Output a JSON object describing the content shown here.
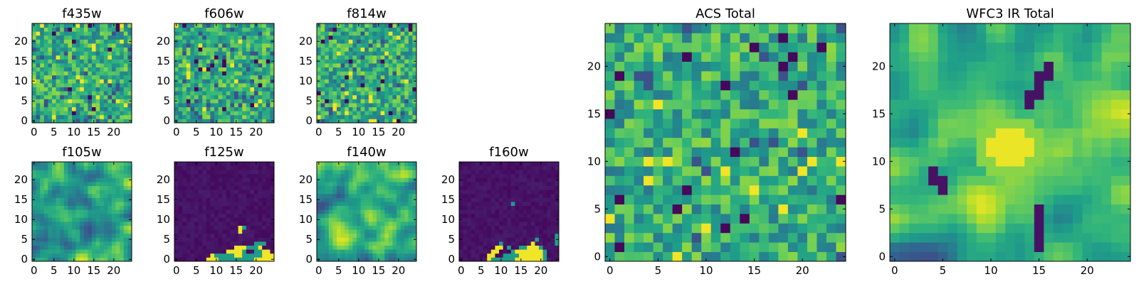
{
  "chart_data": [
    {
      "id": "f435w",
      "type": "heatmap",
      "title": "f435w",
      "pattern": "noise",
      "seed": 11,
      "n": 25,
      "xticks": [
        0,
        5,
        10,
        15,
        20
      ],
      "yticks": [
        0,
        5,
        10,
        15,
        20
      ],
      "xlim": [
        0,
        25
      ],
      "ylim": [
        0,
        25
      ],
      "colormap": "viridis"
    },
    {
      "id": "f606w",
      "type": "heatmap",
      "title": "f606w",
      "pattern": "noise",
      "seed": 23,
      "n": 25,
      "xticks": [
        0,
        5,
        10,
        15,
        20
      ],
      "yticks": [
        0,
        5,
        10,
        15,
        20
      ],
      "xlim": [
        0,
        25
      ],
      "ylim": [
        0,
        25
      ],
      "colormap": "viridis"
    },
    {
      "id": "f814w",
      "type": "heatmap",
      "title": "f814w",
      "pattern": "noise",
      "seed": 37,
      "n": 25,
      "xticks": [
        0,
        5,
        10,
        15,
        20
      ],
      "yticks": [
        0,
        5,
        10,
        15,
        20
      ],
      "xlim": [
        0,
        25
      ],
      "ylim": [
        0,
        25
      ],
      "colormap": "viridis"
    },
    {
      "id": "f105w",
      "type": "heatmap",
      "title": "f105w",
      "pattern": "smooth",
      "seed": 41,
      "n": 25,
      "xticks": [
        0,
        5,
        10,
        15,
        20
      ],
      "yticks": [
        0,
        5,
        10,
        15,
        20
      ],
      "xlim": [
        0,
        25
      ],
      "ylim": [
        0,
        25
      ],
      "colormap": "viridis"
    },
    {
      "id": "f125w",
      "type": "heatmap",
      "title": "f125w",
      "pattern": "dark",
      "seed": 53,
      "n": 25,
      "xticks": [
        0,
        5,
        10,
        15,
        20
      ],
      "yticks": [
        0,
        5,
        10,
        15,
        20
      ],
      "xlim": [
        0,
        25
      ],
      "ylim": [
        0,
        25
      ],
      "colormap": "viridis",
      "bright_cells": [
        [
          8,
          16
        ],
        [
          7,
          16
        ],
        [
          3,
          21
        ],
        [
          2,
          13
        ],
        [
          2,
          14
        ],
        [
          2,
          15
        ],
        [
          1,
          15
        ],
        [
          1,
          16
        ],
        [
          2,
          16
        ],
        [
          3,
          16
        ],
        [
          0,
          8
        ],
        [
          0,
          9
        ],
        [
          0,
          10
        ],
        [
          1,
          9
        ],
        [
          3,
          15
        ],
        [
          3,
          17
        ],
        [
          2,
          22
        ],
        [
          2,
          23
        ],
        [
          1,
          22
        ],
        [
          1,
          23
        ],
        [
          0,
          20
        ],
        [
          0,
          21
        ],
        [
          0,
          22
        ],
        [
          0,
          23
        ],
        [
          0,
          24
        ],
        [
          1,
          24
        ]
      ],
      "mid_cells": [
        [
          8,
          17
        ],
        [
          3,
          18
        ],
        [
          2,
          17
        ],
        [
          1,
          17
        ],
        [
          1,
          18
        ],
        [
          1,
          19
        ],
        [
          0,
          11
        ],
        [
          0,
          12
        ],
        [
          0,
          13
        ],
        [
          0,
          14
        ],
        [
          0,
          15
        ],
        [
          0,
          16
        ],
        [
          0,
          17
        ],
        [
          0,
          18
        ],
        [
          0,
          19
        ],
        [
          1,
          20
        ],
        [
          1,
          21
        ],
        [
          2,
          20
        ],
        [
          2,
          21
        ],
        [
          3,
          19
        ],
        [
          3,
          20
        ],
        [
          4,
          20
        ],
        [
          4,
          21
        ],
        [
          1,
          10
        ],
        [
          1,
          11
        ],
        [
          1,
          12
        ],
        [
          1,
          13
        ],
        [
          1,
          14
        ],
        [
          4,
          22
        ]
      ]
    },
    {
      "id": "f140w",
      "type": "heatmap",
      "title": "f140w",
      "pattern": "smooth",
      "seed": 67,
      "n": 25,
      "xticks": [
        0,
        5,
        10,
        15,
        20
      ],
      "yticks": [
        0,
        5,
        10,
        15,
        20
      ],
      "xlim": [
        0,
        25
      ],
      "ylim": [
        0,
        25
      ],
      "colormap": "viridis"
    },
    {
      "id": "f160w",
      "type": "heatmap",
      "title": "f160w",
      "pattern": "dark",
      "seed": 71,
      "n": 25,
      "xticks": [
        0,
        5,
        10,
        15,
        20
      ],
      "yticks": [
        0,
        5,
        10,
        15,
        20
      ],
      "xlim": [
        0,
        25
      ],
      "ylim": [
        0,
        25
      ],
      "colormap": "viridis",
      "bright_cells": [
        [
          0,
          7
        ],
        [
          1,
          7
        ],
        [
          1,
          8
        ],
        [
          2,
          8
        ],
        [
          2,
          9
        ],
        [
          3,
          9
        ],
        [
          3,
          10
        ],
        [
          0,
          14
        ],
        [
          0,
          15
        ],
        [
          0,
          16
        ],
        [
          0,
          17
        ],
        [
          0,
          18
        ],
        [
          0,
          19
        ],
        [
          0,
          20
        ],
        [
          1,
          15
        ],
        [
          1,
          16
        ],
        [
          1,
          17
        ],
        [
          1,
          18
        ],
        [
          1,
          19
        ],
        [
          1,
          20
        ],
        [
          2,
          14
        ],
        [
          2,
          15
        ],
        [
          2,
          16
        ],
        [
          2,
          17
        ],
        [
          2,
          18
        ],
        [
          2,
          19
        ],
        [
          2,
          20
        ],
        [
          3,
          17
        ],
        [
          3,
          18
        ],
        [
          3,
          19
        ],
        [
          4,
          18
        ]
      ],
      "mid_cells": [
        [
          14,
          13
        ],
        [
          4,
          10
        ],
        [
          3,
          12
        ],
        [
          2,
          13
        ],
        [
          0,
          13
        ],
        [
          1,
          14
        ],
        [
          0,
          21
        ],
        [
          1,
          21
        ],
        [
          2,
          21
        ],
        [
          3,
          20
        ],
        [
          3,
          16
        ],
        [
          5,
          19
        ],
        [
          3,
          15
        ],
        [
          6,
          24
        ],
        [
          5,
          24
        ],
        [
          4,
          24
        ],
        [
          0,
          10
        ],
        [
          0,
          11
        ],
        [
          0,
          12
        ],
        [
          1,
          11
        ],
        [
          1,
          12
        ],
        [
          1,
          13
        ],
        [
          0,
          8
        ],
        [
          0,
          9
        ]
      ]
    },
    {
      "id": "acs",
      "type": "heatmap",
      "title": "ACS Total",
      "pattern": "noise",
      "seed": 89,
      "n": 25,
      "xticks": [
        0,
        5,
        10,
        15,
        20
      ],
      "yticks": [
        0,
        5,
        10,
        15,
        20
      ],
      "xlim": [
        0,
        25
      ],
      "ylim": [
        0,
        25
      ],
      "colormap": "viridis"
    },
    {
      "id": "wfc3",
      "type": "heatmap",
      "title": "WFC3 IR Total",
      "pattern": "smooth-center",
      "seed": 97,
      "n": 25,
      "xticks": [
        0,
        5,
        10,
        15,
        20
      ],
      "yticks": [
        0,
        5,
        10,
        15,
        20
      ],
      "xlim": [
        0,
        25
      ],
      "ylim": [
        0,
        25
      ],
      "colormap": "viridis"
    }
  ]
}
